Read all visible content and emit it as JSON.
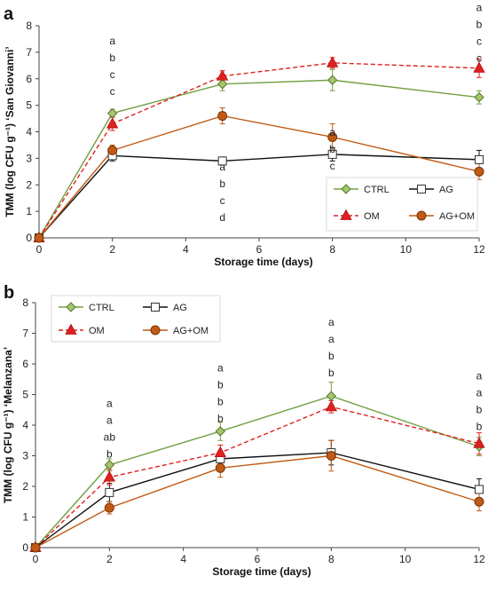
{
  "chart_data": [
    {
      "type": "line",
      "panel": "a",
      "xlabel": "Storage time (days)",
      "ylabel": "TMM (log CFU g⁻¹) ‘San Giovanni’",
      "xlim": [
        0,
        12
      ],
      "ylim": [
        0,
        8
      ],
      "x_ticks": [
        "0",
        "2",
        "4",
        "6",
        "8",
        "10",
        "12"
      ],
      "y_ticks": [
        "0",
        "1",
        "2",
        "3",
        "4",
        "5",
        "6",
        "7",
        "8"
      ],
      "x": [
        0,
        2,
        5,
        8,
        12
      ],
      "legend_position": "bottom-right",
      "series": [
        {
          "name": "CTRL",
          "values": [
            0,
            4.7,
            5.8,
            5.95,
            5.3
          ],
          "errors": [
            0,
            0.15,
            0.25,
            0.4,
            0.25
          ],
          "color": "#70a040",
          "dash": "",
          "marker": "diamond"
        },
        {
          "name": "AG",
          "values": [
            0,
            3.1,
            2.9,
            3.15,
            2.95
          ],
          "errors": [
            0,
            0.2,
            0.15,
            0.25,
            0.35
          ],
          "color": "#111111",
          "dash": "",
          "marker": "square"
        },
        {
          "name": "OM",
          "values": [
            0,
            4.3,
            6.1,
            6.6,
            6.4
          ],
          "errors": [
            0,
            0.25,
            0.2,
            0.2,
            0.35
          ],
          "color": "#e02020",
          "dash": "5,3",
          "marker": "triangle"
        },
        {
          "name": "AG+OM",
          "values": [
            0,
            3.3,
            4.6,
            3.8,
            2.5
          ],
          "errors": [
            0,
            0.2,
            0.3,
            0.5,
            0.3
          ],
          "color": "#c05a14",
          "dash": "",
          "marker": "circle"
        }
      ],
      "annotations": [
        {
          "x": 2,
          "y": 7.3,
          "lines": [
            "a",
            "b",
            "c",
            "c"
          ]
        },
        {
          "x": 5,
          "y": 2.55,
          "lines": [
            "a",
            "b",
            "c",
            "d"
          ]
        },
        {
          "x": 8,
          "y": 3.85,
          "lines": [
            "a",
            "b",
            "c",
            "c"
          ]
        },
        {
          "x": 12,
          "y": 8.55,
          "lines": [
            "a",
            "b",
            "c",
            "c"
          ]
        }
      ]
    },
    {
      "type": "line",
      "panel": "b",
      "xlabel": "Storage time (days)",
      "ylabel": "TMM (log CFU g⁻¹) ‘Melanzana’",
      "xlim": [
        0,
        12
      ],
      "ylim": [
        0,
        8
      ],
      "x_ticks": [
        "0",
        "2",
        "4",
        "6",
        "8",
        "10",
        "12"
      ],
      "y_ticks": [
        "0",
        "1",
        "2",
        "3",
        "4",
        "5",
        "6",
        "7",
        "8"
      ],
      "x": [
        0,
        2,
        5,
        8,
        12
      ],
      "legend_position": "top-left",
      "series": [
        {
          "name": "CTRL",
          "values": [
            0,
            2.7,
            3.8,
            4.95,
            3.3
          ],
          "errors": [
            0,
            0.2,
            0.3,
            0.45,
            0.3
          ],
          "color": "#70a040",
          "dash": "",
          "marker": "diamond"
        },
        {
          "name": "AG",
          "values": [
            0,
            1.8,
            2.9,
            3.1,
            1.9
          ],
          "errors": [
            0,
            0.3,
            0.25,
            0.4,
            0.35
          ],
          "color": "#111111",
          "dash": "",
          "marker": "square"
        },
        {
          "name": "OM",
          "values": [
            0,
            2.3,
            3.1,
            4.6,
            3.4
          ],
          "errors": [
            0,
            0.25,
            0.25,
            0.2,
            0.35
          ],
          "color": "#e02020",
          "dash": "5,3",
          "marker": "triangle"
        },
        {
          "name": "AG+OM",
          "values": [
            0,
            1.3,
            2.6,
            3.0,
            1.5
          ],
          "errors": [
            0,
            0.2,
            0.3,
            0.5,
            0.3
          ],
          "color": "#c05a14",
          "dash": "",
          "marker": "circle"
        }
      ],
      "annotations": [
        {
          "x": 2,
          "y": 4.6,
          "lines": [
            "a",
            "a",
            "ab",
            "b"
          ]
        },
        {
          "x": 5,
          "y": 5.75,
          "lines": [
            "a",
            "b",
            "b",
            "b"
          ]
        },
        {
          "x": 8,
          "y": 7.25,
          "lines": [
            "a",
            "a",
            "b",
            "b"
          ]
        },
        {
          "x": 12,
          "y": 5.5,
          "lines": [
            "a",
            "a",
            "b",
            "b"
          ]
        }
      ]
    }
  ]
}
